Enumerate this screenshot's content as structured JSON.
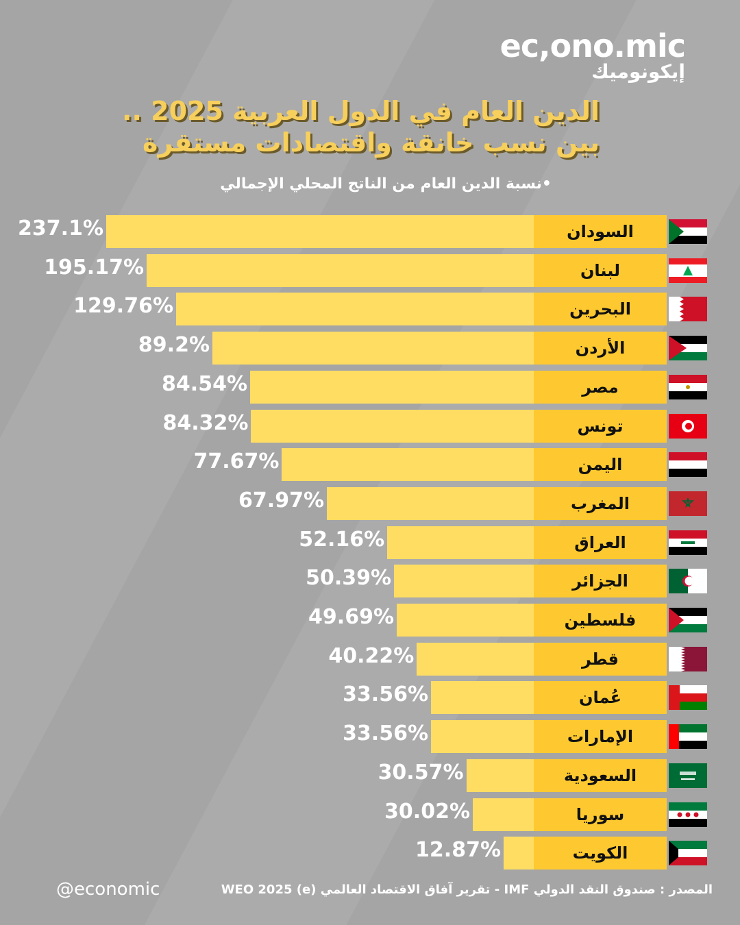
{
  "brand": {
    "logo": "ec,ono.mic",
    "logo_ar": "إيكونوميك",
    "handle": "@economic"
  },
  "title": "الدين العام في الدول العربية 2025 .. بين نسب خانقة واقتصادات مستقرة",
  "subtitle": "•نسبة الدين العام من الناتج المحلي الإجمالي",
  "source": "المصدر : صندوق النقد الدولي IMF - تقرير آفاق الاقتصاد العالمي (e) WEO 2025",
  "colors": {
    "bar": "#ffdd63",
    "label": "#fec930",
    "title": "#f7cf5c",
    "background": "#a5a5a5"
  },
  "chart_data": {
    "type": "bar",
    "orientation": "horizontal",
    "unit": "% of GDP",
    "title": "الدين العام في الدول العربية 2025",
    "categories": [
      "السودان",
      "لبنان",
      "البحرين",
      "الأردن",
      "مصر",
      "تونس",
      "اليمن",
      "المغرب",
      "العراق",
      "الجزائر",
      "فلسطين",
      "قطر",
      "عُمان",
      "الإمارات",
      "السعودية",
      "سوريا",
      "الكويت"
    ],
    "flags": [
      "sudan",
      "lebanon",
      "bahrain",
      "jordan",
      "egypt",
      "tunisia",
      "yemen",
      "morocco",
      "iraq",
      "algeria",
      "palestine",
      "qatar",
      "oman",
      "uae",
      "saudi",
      "syria",
      "kuwait"
    ],
    "values": [
      237.1,
      195.17,
      129.76,
      89.2,
      84.54,
      84.32,
      77.67,
      67.97,
      52.16,
      50.39,
      49.69,
      40.22,
      33.56,
      33.56,
      30.57,
      30.02,
      12.87
    ],
    "labels": [
      "237.1%",
      "195.17%",
      "129.76%",
      "89.2%",
      "84.54%",
      "84.32%",
      "77.67%",
      "67.97%",
      "52.16%",
      "50.39%",
      "49.69%",
      "40.22%",
      "33.56%",
      "33.56%",
      "30.57%",
      "30.02%",
      "12.87%"
    ]
  }
}
